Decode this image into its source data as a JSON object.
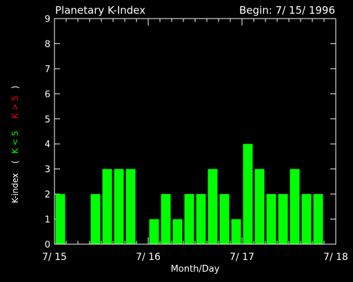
{
  "header": {
    "title": "Planetary K-Index",
    "begin": "Begin: 7/ 15/ 1996"
  },
  "colors": {
    "background": "#000000",
    "axis": "#ffffff",
    "bar": "#00ff00",
    "legend_green": "#00ff00",
    "legend_red": "#ff0000"
  },
  "chart_data": {
    "type": "bar",
    "title": "Planetary K-Index",
    "xlabel": "Month/Day",
    "ylabel": "K-index",
    "legend": {
      "open": "(",
      "low": "K < 5",
      "high": "K > 5",
      "close": ")"
    },
    "xlim": [
      0,
      24
    ],
    "ylim": [
      0,
      9
    ],
    "y_ticks": [
      "0",
      "1",
      "2",
      "3",
      "4",
      "5",
      "6",
      "7",
      "8",
      "9"
    ],
    "x_tick_labels": [
      "7/ 15",
      "7/ 16",
      "7/ 17",
      "7/ 18"
    ],
    "x_tick_values": [
      0,
      8,
      16,
      24
    ],
    "bar_interval": "3-hour",
    "values": [
      2,
      null,
      null,
      2,
      3,
      3,
      3,
      null,
      1,
      2,
      1,
      2,
      2,
      3,
      2,
      1,
      4,
      3,
      2,
      2,
      3,
      2,
      2,
      null
    ]
  }
}
